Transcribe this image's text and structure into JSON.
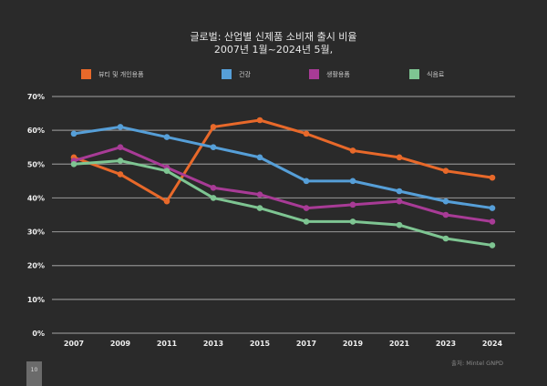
{
  "chart_data": {
    "type": "line",
    "title": "글로벌: 산업별 신제품 소비재 출시 비율",
    "subtitle": "2007년 1월~2024년 5월,",
    "categories": [
      "2007",
      "2009",
      "2011",
      "2013",
      "2015",
      "2017",
      "2019",
      "2021",
      "2023",
      "2024"
    ],
    "y_ticks": [
      "0%",
      "10%",
      "20%",
      "30%",
      "40%",
      "50%",
      "60%",
      "70%"
    ],
    "ylim": [
      0,
      70
    ],
    "grid": true,
    "legend_position": "top",
    "series": [
      {
        "name": "뷰티 및 개인용품",
        "color": "#e8692a",
        "values": [
          52,
          47,
          39,
          61,
          63,
          59,
          54,
          52,
          48,
          46
        ]
      },
      {
        "name": "건강",
        "color": "#569fd8",
        "values": [
          59,
          61,
          58,
          55,
          52,
          45,
          45,
          42,
          39,
          37
        ]
      },
      {
        "name": "생활용품",
        "color": "#a83b96",
        "values": [
          51,
          55,
          49,
          43,
          41,
          37,
          38,
          39,
          35,
          33
        ]
      },
      {
        "name": "식음료",
        "color": "#7ec592",
        "values": [
          50,
          51,
          48,
          40,
          37,
          33,
          33,
          32,
          28,
          26
        ]
      }
    ]
  },
  "source": "출처: Mintel GNPD",
  "page_number": "10"
}
